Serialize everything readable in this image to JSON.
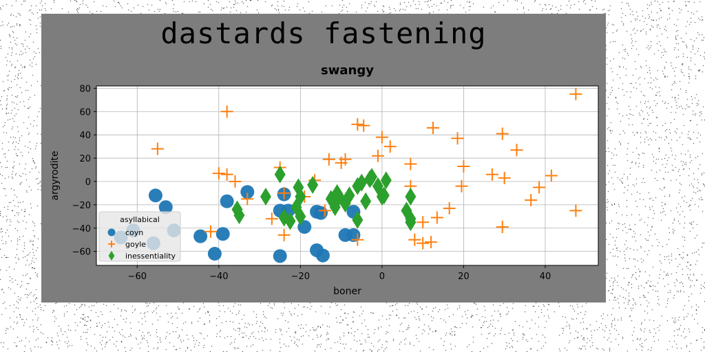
{
  "figure": {
    "suptitle": "dastards fastening"
  },
  "chart_data": {
    "type": "scatter",
    "title": "swangy",
    "xlabel": "boner",
    "ylabel": "argyrodite",
    "xlim": [
      -70,
      53
    ],
    "ylim": [
      -72,
      82
    ],
    "xticks": [
      -60,
      -40,
      -20,
      0,
      20,
      40
    ],
    "yticks": [
      -60,
      -40,
      -20,
      0,
      20,
      40,
      60,
      80
    ],
    "xtick_labels": [
      "−60",
      "−40",
      "−20",
      "0",
      "20",
      "40"
    ],
    "ytick_labels": [
      "−60",
      "−40",
      "−20",
      "0",
      "20",
      "40",
      "60",
      "80"
    ],
    "grid": true,
    "legend": {
      "title": "asyllabical",
      "placement": "lower-left"
    },
    "series": [
      {
        "name": "coyn",
        "marker": "circle",
        "color": "#1f77b4",
        "points": [
          [
            -55.5,
            -12
          ],
          [
            -53,
            -22
          ],
          [
            -61,
            -42
          ],
          [
            -51,
            -42
          ],
          [
            -64,
            -48
          ],
          [
            -56,
            -53
          ],
          [
            -44.5,
            -47
          ],
          [
            -39,
            -45
          ],
          [
            -41,
            -62
          ],
          [
            -38,
            -17
          ],
          [
            -33,
            -9
          ],
          [
            -24,
            -11
          ],
          [
            -25,
            -25
          ],
          [
            -23,
            -25
          ],
          [
            -19,
            -39
          ],
          [
            -16,
            -26
          ],
          [
            -25,
            -64
          ],
          [
            -16,
            -59
          ],
          [
            -14.5,
            -63.5
          ],
          [
            -9,
            -46
          ],
          [
            -7,
            -46
          ],
          [
            -7,
            -26
          ],
          [
            -15,
            -27
          ]
        ]
      },
      {
        "name": "goyle",
        "marker": "plus",
        "color": "#ff7f0e",
        "points": [
          [
            -55,
            28
          ],
          [
            -38,
            60
          ],
          [
            -40,
            7
          ],
          [
            -38,
            6
          ],
          [
            -36,
            0
          ],
          [
            -42,
            -43
          ],
          [
            -33,
            -15
          ],
          [
            -27,
            -32
          ],
          [
            -25,
            12
          ],
          [
            -24,
            -10
          ],
          [
            -24,
            -46
          ],
          [
            -19,
            -13
          ],
          [
            -16.5,
            1
          ],
          [
            -14,
            -25
          ],
          [
            -13,
            19
          ],
          [
            -10,
            16
          ],
          [
            -9,
            19
          ],
          [
            -6,
            -50
          ],
          [
            -6,
            49
          ],
          [
            -4.5,
            48
          ],
          [
            -1,
            22
          ],
          [
            0,
            38
          ],
          [
            2,
            30
          ],
          [
            7,
            15
          ],
          [
            7,
            -4
          ],
          [
            8,
            -50
          ],
          [
            10,
            -35
          ],
          [
            10,
            -53
          ],
          [
            12,
            -52
          ],
          [
            13.5,
            -31
          ],
          [
            12.5,
            46
          ],
          [
            16.5,
            -23
          ],
          [
            18.5,
            37
          ],
          [
            19.5,
            -4
          ],
          [
            20,
            13
          ],
          [
            27,
            6
          ],
          [
            29.5,
            41
          ],
          [
            29.5,
            -39
          ],
          [
            30,
            3
          ],
          [
            33,
            27
          ],
          [
            36.5,
            -16
          ],
          [
            38.5,
            -5
          ],
          [
            41.5,
            5
          ],
          [
            47.5,
            75
          ],
          [
            47.5,
            -25
          ]
        ]
      },
      {
        "name": "inessentiality",
        "marker": "diamond",
        "color": "#2ca02c",
        "points": [
          [
            -35.5,
            -24
          ],
          [
            -35,
            -29
          ],
          [
            -28.5,
            -13
          ],
          [
            -25,
            6
          ],
          [
            -24,
            -31
          ],
          [
            -22.5,
            -34
          ],
          [
            -21,
            -22
          ],
          [
            -20.5,
            -5
          ],
          [
            -20,
            -13
          ],
          [
            -20,
            -30
          ],
          [
            -17,
            -3
          ],
          [
            -12.5,
            -15
          ],
          [
            -11.5,
            -22
          ],
          [
            -11,
            -10
          ],
          [
            -10.5,
            -13
          ],
          [
            -9,
            -19
          ],
          [
            -8,
            -12
          ],
          [
            -6,
            -4
          ],
          [
            -6,
            -33
          ],
          [
            -5,
            -1
          ],
          [
            -4,
            -17
          ],
          [
            -3,
            2
          ],
          [
            -2.5,
            4
          ],
          [
            -1,
            -4
          ],
          [
            0,
            -13
          ],
          [
            0.5,
            -12
          ],
          [
            1,
            1
          ],
          [
            6,
            -25
          ],
          [
            7,
            -13
          ],
          [
            7,
            -32
          ],
          [
            7,
            -35
          ]
        ]
      }
    ]
  }
}
